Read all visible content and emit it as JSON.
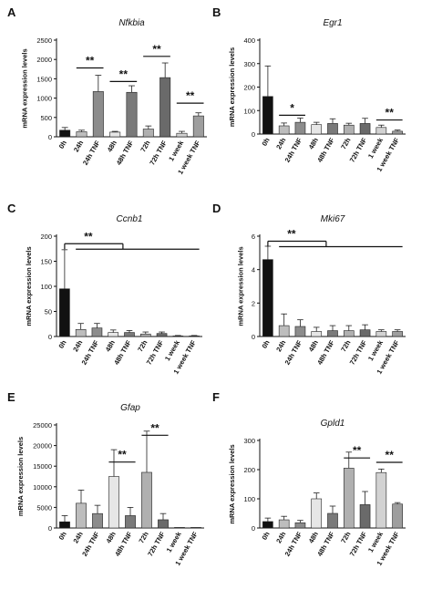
{
  "figure": {
    "ylabel": "mRNA expression levels",
    "colors": {
      "0h": "#111111",
      "24h": "#bdbdbd",
      "24h TNF": "#8c8c8c",
      "48h": "#e6e6e6",
      "48h TNF": "#7a7a7a",
      "72h": "#b0b0b0",
      "72h TNF": "#6a6a6a",
      "1 week": "#d2d2d2",
      "1 week TNF": "#9e9e9e",
      "line": "#111111",
      "axis": "#111111"
    }
  },
  "chart_data": [
    {
      "panel": "A",
      "title": "Nfkbia",
      "type": "bar",
      "categories": [
        "0h",
        "24h",
        "24h TNF",
        "48h",
        "48h TNF",
        "72h",
        "72h TNF",
        "1 week",
        "1 week TNF"
      ],
      "values": [
        170,
        130,
        1170,
        120,
        1150,
        200,
        1530,
        90,
        540
      ],
      "errors": [
        70,
        40,
        420,
        20,
        170,
        80,
        380,
        50,
        80
      ],
      "ylabel": "mRNA expression levels",
      "ylim": [
        0,
        2500
      ],
      "yticks": [
        0,
        500,
        1000,
        1500,
        2000,
        2500
      ],
      "annotations": [
        {
          "from": "24h",
          "to": "24h TNF",
          "label": "**",
          "y": 1780
        },
        {
          "from": "48h",
          "to": "48h TNF",
          "label": "**",
          "y": 1430
        },
        {
          "from": "72h",
          "to": "72h TNF",
          "label": "**",
          "y": 2080
        },
        {
          "from": "1 week",
          "to": "1 week TNF",
          "label": "**",
          "y": 870
        }
      ]
    },
    {
      "panel": "B",
      "title": "Egr1",
      "type": "bar",
      "categories": [
        "0h",
        "24h",
        "24h TNF",
        "48h",
        "48h TNF",
        "72h",
        "72h TNF",
        "1 week",
        "1 week TNF"
      ],
      "values": [
        160,
        35,
        50,
        40,
        45,
        38,
        45,
        28,
        12
      ],
      "errors": [
        130,
        12,
        18,
        10,
        20,
        8,
        22,
        10,
        5
      ],
      "ylabel": "mRNA expression levels",
      "ylim": [
        0,
        400
      ],
      "yticks": [
        0,
        100,
        200,
        300,
        400
      ],
      "annotations": [
        {
          "from": "24h",
          "to": "24h TNF",
          "label": "*",
          "y": 80
        },
        {
          "from": "1 week",
          "to": "1 week TNF",
          "label": "**",
          "y": 60
        }
      ]
    },
    {
      "panel": "C",
      "title": "Ccnb1",
      "type": "bar",
      "categories": [
        "0h",
        "24h",
        "24h TNF",
        "48h",
        "48h TNF",
        "72h",
        "72h TNF",
        "1 week",
        "1 week TNF"
      ],
      "values": [
        95,
        14,
        17,
        8,
        8,
        5,
        6,
        1,
        1
      ],
      "errors": [
        78,
        12,
        9,
        5,
        4,
        4,
        3,
        1,
        1
      ],
      "ylabel": "mRNA expression levels",
      "ylim": [
        0,
        200
      ],
      "yticks": [
        0,
        50,
        100,
        150,
        200
      ],
      "bracket": {
        "label": "**",
        "y": 185,
        "from": "0h",
        "to": "1 week TNF",
        "drop_y": 178
      }
    },
    {
      "panel": "D",
      "title": "Mki67",
      "type": "bar",
      "categories": [
        "0h",
        "24h",
        "24h TNF",
        "48h",
        "48h TNF",
        "72h",
        "72h TNF",
        "1 week",
        "1 week TNF"
      ],
      "values": [
        4.6,
        0.65,
        0.6,
        0.3,
        0.35,
        0.35,
        0.4,
        0.3,
        0.3
      ],
      "errors": [
        0.8,
        0.7,
        0.4,
        0.25,
        0.3,
        0.3,
        0.3,
        0.1,
        0.1
      ],
      "ylabel": "mRNA expression levels",
      "ylim": [
        0,
        6
      ],
      "yticks": [
        0,
        2,
        4,
        6
      ],
      "bracket": {
        "label": "**",
        "y": 5.7,
        "from": "0h",
        "to": "1 week TNF",
        "drop_y": 5.5
      }
    },
    {
      "panel": "E",
      "title": "Gfap",
      "type": "bar",
      "categories": [
        "0h",
        "24h",
        "24h TNF",
        "48h",
        "48h TNF",
        "72h",
        "72h TNF",
        "1 week",
        "1 week TNF"
      ],
      "values": [
        1500,
        6000,
        3500,
        12500,
        3000,
        13500,
        2000,
        0,
        0
      ],
      "errors": [
        1500,
        3200,
        2000,
        6500,
        2000,
        10000,
        1500,
        0,
        0
      ],
      "ylabel": "mRNA expression levels",
      "ylim": [
        0,
        25000
      ],
      "yticks": [
        0,
        5000,
        10000,
        15000,
        20000,
        25000
      ],
      "annotations": [
        {
          "from": "48h",
          "to": "48h TNF",
          "label": "**",
          "y": 16000
        },
        {
          "from": "72h",
          "to": "72h TNF",
          "label": "**",
          "y": 22500
        }
      ]
    },
    {
      "panel": "F",
      "title": "Gpld1",
      "type": "bar",
      "categories": [
        "0h",
        "24h",
        "24h TNF",
        "48h",
        "48h TNF",
        "72h",
        "72h TNF",
        "1 week",
        "1 week TNF"
      ],
      "values": [
        22,
        28,
        18,
        100,
        50,
        205,
        80,
        190,
        82
      ],
      "errors": [
        12,
        12,
        8,
        20,
        25,
        55,
        45,
        12,
        5
      ],
      "ylabel": "mRNA expression levels",
      "ylim": [
        0,
        300
      ],
      "yticks": [
        0,
        100,
        200,
        300
      ],
      "annotations": [
        {
          "from": "72h",
          "to": "72h TNF",
          "label": "**",
          "y": 240
        },
        {
          "from": "1 week",
          "to": "1 week TNF",
          "label": "**",
          "y": 225
        }
      ]
    }
  ]
}
